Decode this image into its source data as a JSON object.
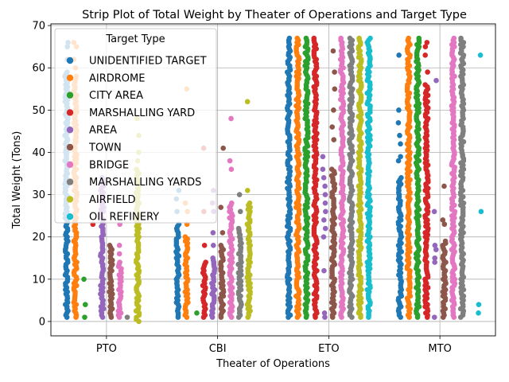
{
  "chart_data": {
    "type": "scatter",
    "subtype": "strip",
    "title": "Strip Plot of Total Weight by Theater of Operations and Target Type",
    "xlabel": "Theater of Operations",
    "ylabel": "Total Weight (Tons)",
    "categories": [
      "PTO",
      "CBI",
      "ETO",
      "MTO"
    ],
    "ylim": [
      -3.4,
      70.4
    ],
    "yticks": [
      0,
      10,
      20,
      30,
      40,
      50,
      60,
      70
    ],
    "grid": true,
    "legend": {
      "title": "Target Type",
      "placement": "upper-left"
    },
    "series": [
      {
        "name": "UNIDENTIFIED TARGET",
        "color": "#1f77b4",
        "ranges": [
          [
            1,
            59
          ],
          [
            1,
            23
          ],
          [
            1,
            67
          ],
          [
            1,
            34
          ]
        ],
        "extra": [
          [
            62,
            65,
            66,
            45,
            47,
            56,
            58,
            40,
            42
          ],
          [
            26,
            29,
            31
          ],
          [],
          [
            38,
            39,
            42,
            44,
            47,
            50,
            63
          ]
        ]
      },
      {
        "name": "AIRDROME",
        "color": "#ff7f0e",
        "ranges": [
          [
            1,
            58
          ],
          [
            1,
            20
          ],
          [
            1,
            67
          ],
          [
            1,
            67
          ]
        ],
        "extra": [
          [
            60,
            62,
            65,
            66
          ],
          [
            23,
            26,
            28,
            55
          ],
          [],
          []
        ]
      },
      {
        "name": "CITY AREA",
        "color": "#2ca02c",
        "ranges": [
          [],
          [],
          [
            1,
            67
          ],
          [
            1,
            67
          ]
        ],
        "extra": [
          [
            1,
            4,
            10
          ],
          [
            2
          ],
          [],
          []
        ]
      },
      {
        "name": "MARSHALLING YARD",
        "color": "#d62728",
        "ranges": [
          [],
          [
            1,
            14
          ],
          [
            1,
            67
          ],
          [
            1,
            56
          ]
        ],
        "extra": [
          [
            23
          ],
          [
            18,
            26,
            41
          ],
          [],
          [
            59,
            63,
            65,
            66
          ]
        ]
      },
      {
        "name": "AREA",
        "color": "#9467bd",
        "ranges": [
          [
            1,
            34
          ],
          [
            1,
            15
          ],
          [],
          []
        ],
        "extra": [
          [],
          [
            18,
            21,
            26,
            28,
            31
          ],
          [
            1,
            2,
            12,
            20,
            22,
            24,
            26,
            28,
            30,
            32,
            34,
            36,
            39
          ],
          [
            1,
            14,
            15,
            17,
            18,
            26,
            57
          ]
        ]
      },
      {
        "name": "TOWN",
        "color": "#8c564b",
        "ranges": [
          [
            1,
            18
          ],
          [
            1,
            18
          ],
          [
            1,
            36
          ],
          [
            1,
            19
          ]
        ],
        "extra": [
          [],
          [
            21,
            27,
            41
          ],
          [
            43,
            46,
            50,
            55,
            59,
            64
          ],
          [
            23,
            24,
            32
          ]
        ]
      },
      {
        "name": "BRIDGE",
        "color": "#e377c2",
        "ranges": [
          [
            1,
            14
          ],
          [
            1,
            28
          ],
          [
            1,
            67
          ],
          [
            1,
            67
          ]
        ],
        "extra": [
          [
            16,
            18,
            23
          ],
          [
            36,
            38,
            48
          ],
          [],
          []
        ]
      },
      {
        "name": "MARSHALLING YARDS",
        "color": "#7f7f7f",
        "ranges": [
          [],
          [
            1,
            22
          ],
          [
            1,
            67
          ],
          [
            1,
            67
          ]
        ],
        "extra": [
          [
            1
          ],
          [
            26,
            30
          ],
          [],
          []
        ]
      },
      {
        "name": "AIRFIELD",
        "color": "#bcbd22",
        "ranges": [
          [
            0,
            36
          ],
          [
            1,
            28
          ],
          [
            1,
            67
          ],
          []
        ],
        "extra": [
          [
            38,
            40,
            44,
            48
          ],
          [
            31,
            52
          ],
          [],
          []
        ]
      },
      {
        "name": "OIL REFINERY",
        "color": "#17becf",
        "ranges": [
          [],
          [],
          [
            1,
            67
          ],
          []
        ],
        "extra": [
          [],
          [],
          [],
          [
            2,
            4,
            26,
            63
          ]
        ]
      }
    ]
  }
}
